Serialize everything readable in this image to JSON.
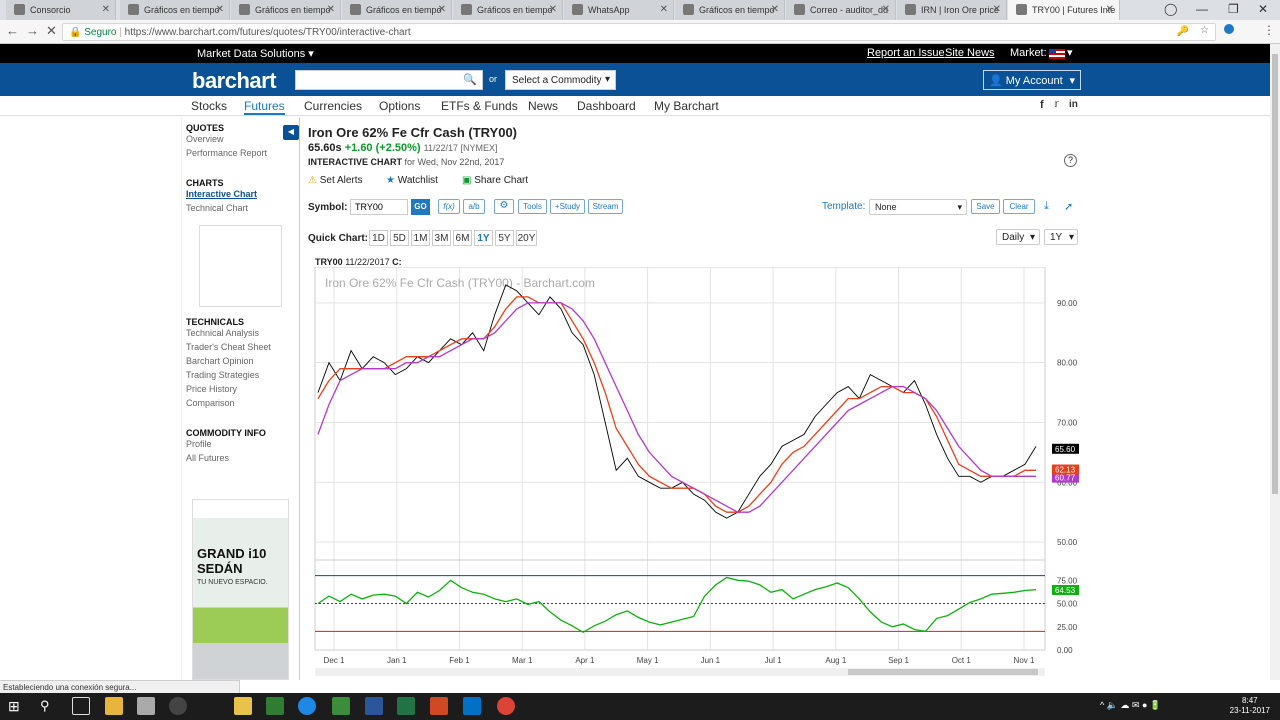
{
  "browser": {
    "tabs": [
      {
        "title": "Consorcio",
        "active": false
      },
      {
        "title": "Gráficos en tiempo",
        "active": false
      },
      {
        "title": "Gráficos en tiempo",
        "active": false
      },
      {
        "title": "Gráficos en tiempo",
        "active": false
      },
      {
        "title": "Gráficos en tiempo",
        "active": false
      },
      {
        "title": "WhatsApp",
        "active": false
      },
      {
        "title": "Gráficos en tiempo",
        "active": false
      },
      {
        "title": "Correo - auditor_du",
        "active": false
      },
      {
        "title": "IRN | Iron Ore price",
        "active": false
      },
      {
        "title": "TRY00 | Futures Inte",
        "active": true
      }
    ],
    "security_label": "Seguro",
    "url": "https://www.barchart.com/futures/quotes/TRY00/interactive-chart",
    "status_text": "Estableciendo una conexión segura..."
  },
  "topbar": {
    "market_data": "Market Data Solutions",
    "report_issue": "Report an Issue",
    "site_news": "Site News",
    "market_label": "Market:"
  },
  "header": {
    "logo": "barchart",
    "or": "or",
    "select_commodity": "Select a Commodity",
    "my_account": "My Account"
  },
  "nav": [
    "Stocks",
    "Futures",
    "Currencies",
    "Options",
    "ETFs & Funds",
    "News",
    "Dashboard",
    "My Barchart"
  ],
  "nav_active": "Futures",
  "sidebar": {
    "quotes_title": "QUOTES",
    "quotes": [
      "Overview",
      "Performance Report"
    ],
    "charts_title": "CHARTS",
    "charts": [
      "Interactive Chart",
      "Technical Chart"
    ],
    "technicals_title": "TECHNICALS",
    "technicals": [
      "Technical Analysis",
      "Trader's Cheat Sheet",
      "Barchart Opinion",
      "Trading Strategies",
      "Price History",
      "Comparison"
    ],
    "commodity_title": "COMMODITY INFO",
    "commodity": [
      "Profile",
      "All Futures"
    ],
    "ad_line1": "GRAND i10",
    "ad_line2": "SEDÁN",
    "ad_line3": "TU NUEVO ESPACIO."
  },
  "quote": {
    "title": "Iron Ore 62% Fe Cfr Cash (TRY00)",
    "price": "65.60s",
    "change": "+1.60 (+2.50%)",
    "date_exch": "11/22/17 [NYMEX]",
    "chart_label": "INTERACTIVE CHART",
    "chart_for": "for Wed, Nov 22nd, 2017"
  },
  "actions": {
    "alerts": "Set Alerts",
    "watchlist": "Watchlist",
    "share": "Share Chart"
  },
  "toolbar": {
    "symbol_label": "Symbol:",
    "symbol_value": "TRY00",
    "go": "GO",
    "fx": "f(x)",
    "ab": "a/b",
    "tools": "Tools",
    "study": "+Study",
    "stream": "Stream",
    "template_label": "Template:",
    "template_value": "None",
    "save": "Save",
    "clear": "Clear"
  },
  "quick_chart": {
    "label": "Quick Chart:",
    "ranges": [
      "1D",
      "5D",
      "1M",
      "3M",
      "6M",
      "1Y",
      "5Y",
      "20Y"
    ],
    "active": "1Y",
    "interval": "Daily",
    "period": "1Y"
  },
  "chart_header": {
    "symbol": "TRY00",
    "date": "11/22/2017",
    "c": "C:"
  },
  "chart_data": {
    "type": "line",
    "watermark": "Iron Ore 62% Fe Cfr Cash (TRY00) - Barchart.com",
    "x_ticks": [
      "Dec 1",
      "Jan 1",
      "Feb 1",
      "Mar 1",
      "Apr 1",
      "May 1",
      "Jun 1",
      "Jul 1",
      "Aug 1",
      "Sep 1",
      "Oct 1",
      "Nov 1"
    ],
    "price_axis": {
      "ticks": [
        "90.00",
        "80.00",
        "70.00",
        "60.00",
        "50.00"
      ],
      "ylim": [
        47,
        96
      ]
    },
    "price_labels": {
      "last": "65.60",
      "ma1": "62.13",
      "ma2": "60.77"
    },
    "osc_axis": {
      "ticks": [
        "75.00",
        "50.00",
        "25.00",
        "0.00"
      ],
      "ylim": [
        0,
        100
      ]
    },
    "osc_label": "64.53",
    "colors": {
      "price": "#000000",
      "ma1": "#e8401c",
      "ma2": "#b23ac9",
      "osc": "#10b010",
      "upper": "#1f3f8f",
      "lower": "#d02020"
    },
    "series": [
      {
        "values": [
          75,
          80,
          77,
          82,
          79,
          81,
          80,
          78,
          79,
          81,
          80,
          82,
          84,
          83,
          85,
          82,
          88,
          93,
          92,
          90,
          88,
          91,
          89,
          85,
          83,
          78,
          70,
          62,
          64,
          61,
          60,
          59,
          59,
          60,
          58,
          57,
          55,
          54,
          55,
          58,
          61,
          63,
          66,
          67,
          68,
          71,
          73,
          75,
          76,
          74,
          78,
          77,
          76,
          75,
          77,
          73,
          68,
          64,
          61,
          61,
          60,
          61,
          61,
          62,
          63,
          66
        ]
      },
      {
        "values": [
          74,
          77,
          79,
          79,
          79,
          79,
          79,
          80,
          81,
          81,
          81,
          82,
          83,
          84,
          84,
          84,
          86,
          89,
          91,
          91,
          90,
          90,
          90,
          87,
          84,
          80,
          75,
          69,
          66,
          63,
          61,
          60,
          59,
          59,
          59,
          58,
          56,
          55,
          55,
          56,
          58,
          60,
          63,
          65,
          66,
          68,
          70,
          72,
          74,
          74,
          75,
          76,
          76,
          75,
          75,
          74,
          71,
          67,
          63,
          62,
          61,
          61,
          61,
          61,
          62,
          62
        ]
      },
      {
        "values": [
          68,
          73,
          77,
          78,
          79,
          79,
          79,
          79,
          80,
          80,
          81,
          81,
          82,
          83,
          84,
          84,
          85,
          87,
          89,
          90,
          90,
          90,
          90,
          89,
          87,
          84,
          80,
          76,
          72,
          68,
          65,
          63,
          61,
          60,
          59,
          58,
          57,
          56,
          55,
          55,
          56,
          58,
          60,
          62,
          64,
          66,
          68,
          70,
          72,
          73,
          74,
          75,
          76,
          76,
          75,
          74,
          72,
          69,
          66,
          64,
          62,
          61,
          61,
          61,
          61,
          61
        ]
      },
      {
        "values": [
          50,
          58,
          52,
          60,
          55,
          59,
          60,
          58,
          50,
          62,
          57,
          64,
          75,
          67,
          62,
          60,
          55,
          52,
          55,
          49,
          52,
          41,
          32,
          26,
          19,
          26,
          31,
          38,
          42,
          35,
          30,
          27,
          30,
          33,
          36,
          58,
          70,
          78,
          75,
          74,
          70,
          62,
          65,
          55,
          60,
          65,
          68,
          72,
          67,
          55,
          41,
          30,
          25,
          28,
          22,
          20,
          34,
          37,
          44,
          51,
          55,
          60,
          61,
          62,
          64,
          65
        ]
      }
    ]
  }
}
